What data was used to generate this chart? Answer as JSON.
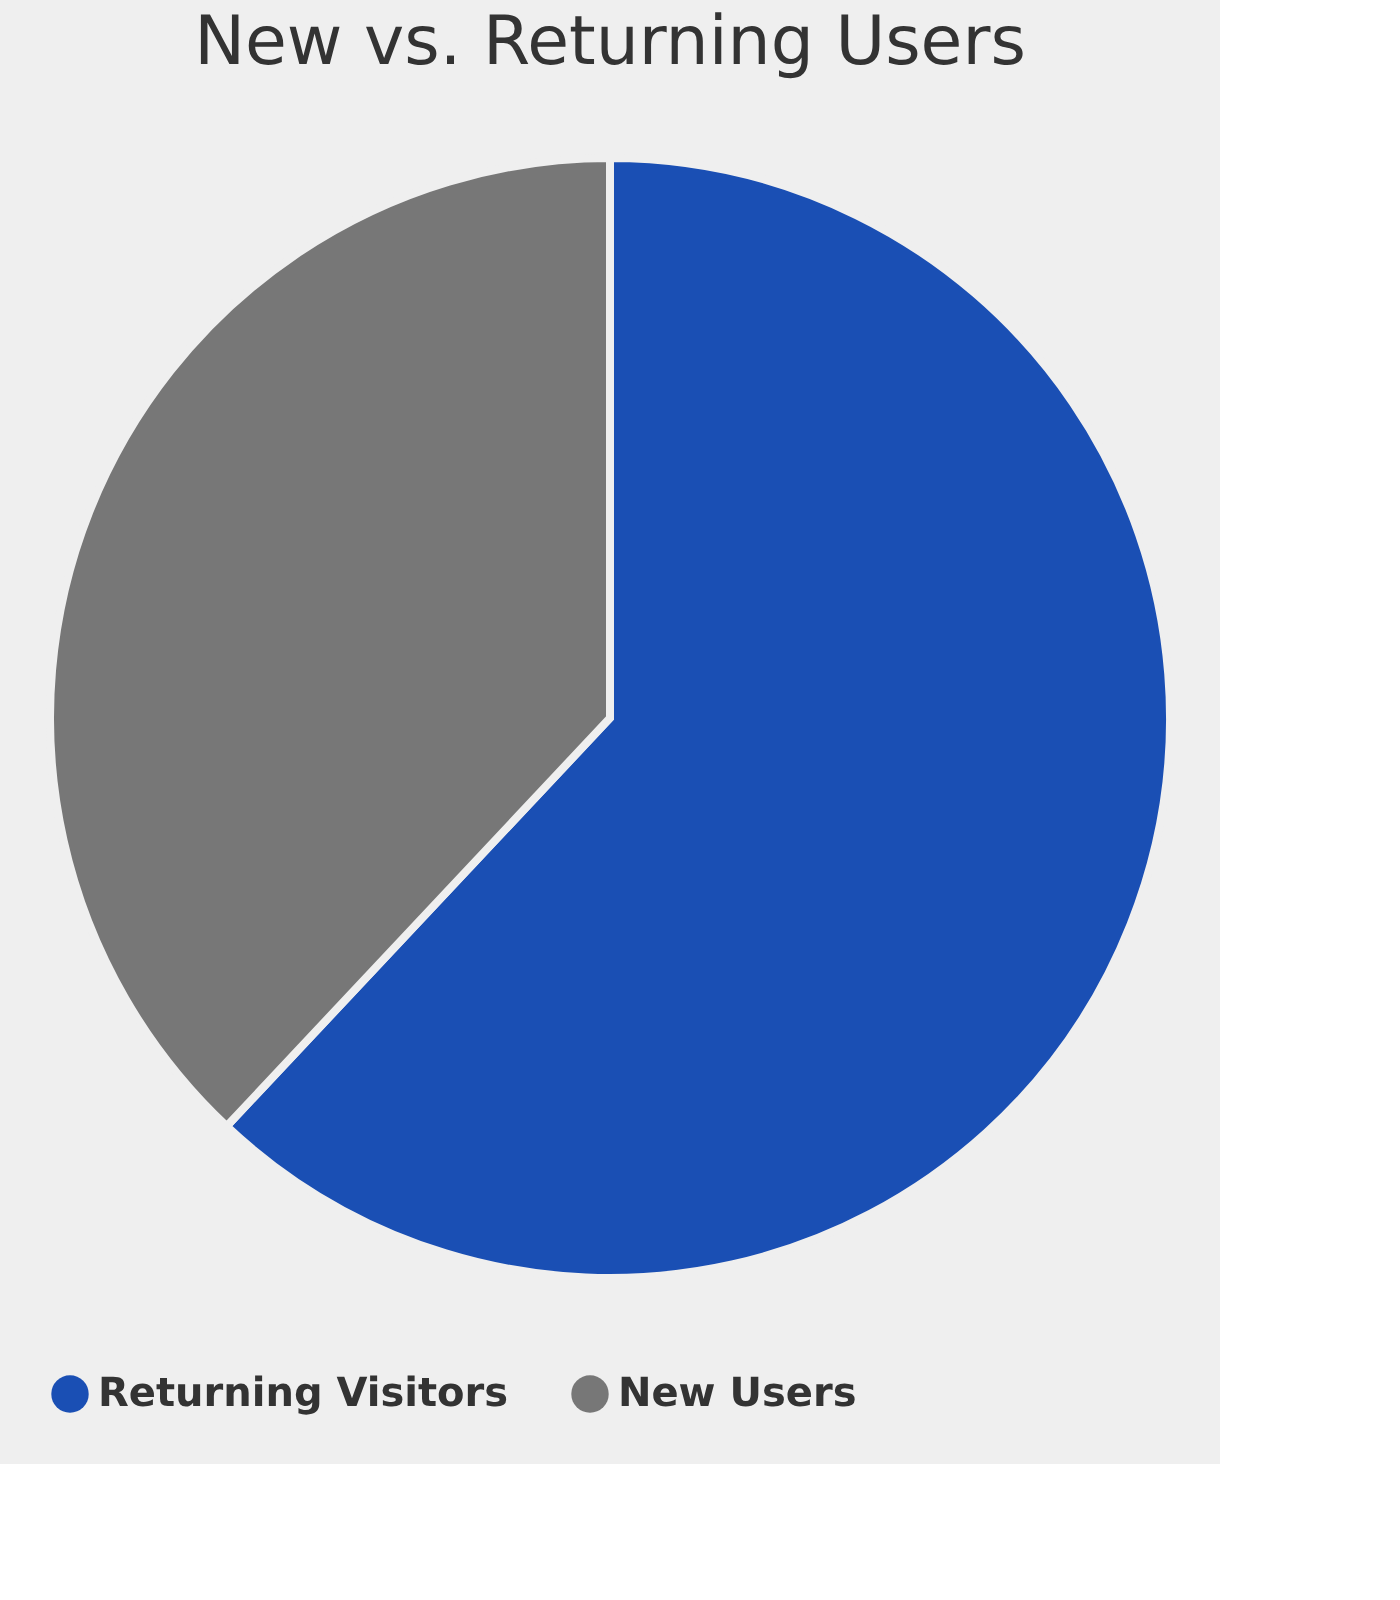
{
  "chart_data": {
    "type": "pie",
    "title": "New vs. Returning Users",
    "categories": [
      "Returning Visitors",
      "New Users"
    ],
    "values": [
      62,
      38
    ],
    "colors": [
      "#1a4fb4",
      "#777777"
    ],
    "legend": "bottom"
  }
}
